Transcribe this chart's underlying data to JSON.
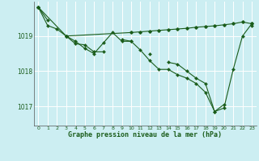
{
  "title": "Graphe pression niveau de la mer (hPa)",
  "bg_color": "#cceef2",
  "grid_color": "#ffffff",
  "line_color": "#1a5c1a",
  "x_ticks": [
    0,
    1,
    2,
    3,
    4,
    5,
    6,
    7,
    8,
    9,
    10,
    11,
    12,
    13,
    14,
    15,
    16,
    17,
    18,
    19,
    20,
    21,
    22,
    23
  ],
  "y_ticks": [
    1017,
    1018,
    1019
  ],
  "ylim": [
    1016.45,
    1019.98
  ],
  "xlim": [
    -0.5,
    23.5
  ],
  "series1": [
    1019.82,
    1019.45,
    null,
    1019.0,
    1018.78,
    1018.75,
    1018.55,
    1018.55,
    null,
    1018.9,
    1018.85,
    null,
    1018.5,
    null,
    1018.25,
    1018.2,
    1018.0,
    1017.8,
    1017.65,
    1016.85,
    1017.05,
    null,
    null,
    1019.3
  ],
  "series2": [
    1019.82,
    1019.3,
    1019.2,
    1019.0,
    1018.85,
    1018.65,
    1018.5,
    1018.8,
    1019.1,
    1018.85,
    1018.85,
    1018.6,
    1018.3,
    1018.05,
    1018.05,
    1017.9,
    1017.8,
    1017.65,
    1017.4,
    1016.85,
    1016.95,
    1018.05,
    1019.0,
    1019.35
  ],
  "series3": [
    1019.82,
    null,
    null,
    1019.0,
    null,
    null,
    null,
    null,
    null,
    null,
    1019.1,
    1019.12,
    1019.14,
    1019.16,
    1019.18,
    1019.2,
    1019.22,
    1019.25,
    1019.27,
    1019.29,
    1019.32,
    1019.35,
    1019.4,
    1019.35
  ]
}
